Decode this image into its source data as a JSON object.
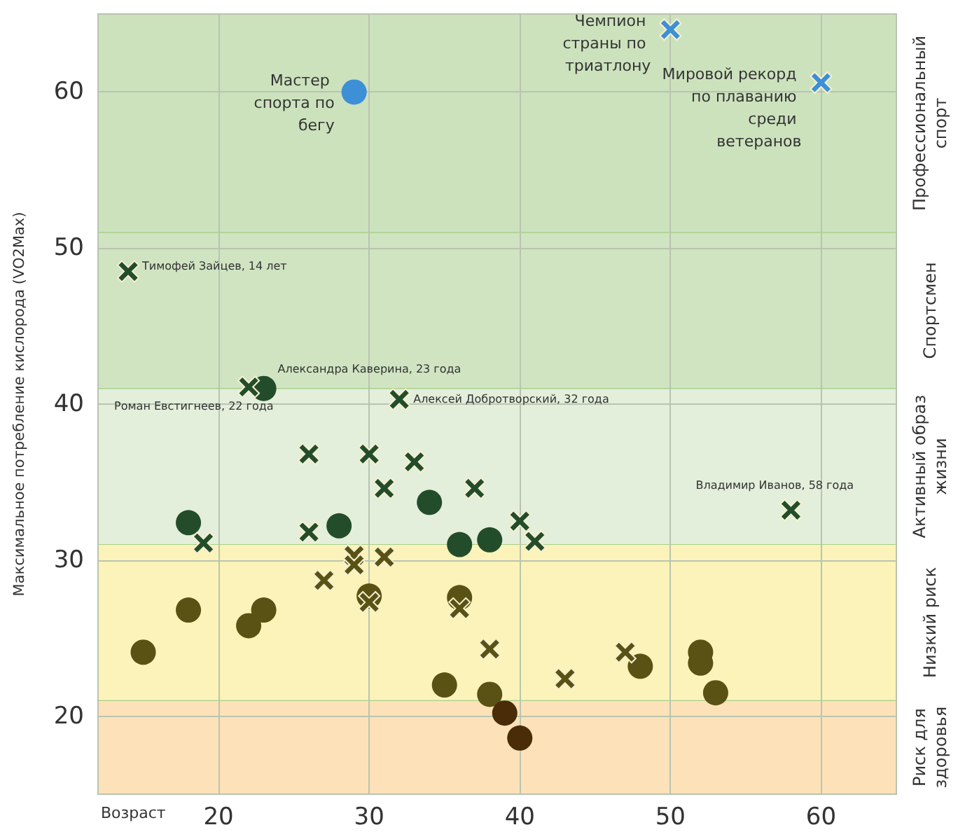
{
  "chart_data": {
    "type": "scatter",
    "xlabel": "Возраст",
    "ylabel": "Максимальное потребление кислорода (VO2Max)",
    "xlim": [
      12,
      65
    ],
    "ylim": [
      15,
      65
    ],
    "xticks": [
      20,
      30,
      40,
      50,
      60
    ],
    "yticks": [
      20,
      30,
      40,
      50,
      60
    ],
    "grid": true,
    "series": [
      {
        "color": "#3d8fd6",
        "marker": "circle",
        "x": [
          29
        ],
        "values": [
          60
        ]
      },
      {
        "color": "#3d8fd6",
        "marker": "cross",
        "x": [
          50,
          60
        ],
        "values": [
          64,
          60.6
        ]
      },
      {
        "color": "#234d2a",
        "marker": "cross",
        "x": [
          14,
          22,
          32,
          26,
          30,
          33,
          31,
          37,
          40,
          26,
          41,
          19,
          58
        ],
        "values": [
          48.5,
          41.1,
          40.3,
          36.8,
          36.8,
          36.3,
          34.6,
          34.6,
          32.5,
          31.8,
          31.2,
          31.1,
          33.2
        ]
      },
      {
        "color": "#234d2a",
        "marker": "circle",
        "x": [
          23,
          18,
          28,
          34,
          36,
          38
        ],
        "values": [
          41,
          32.4,
          32.2,
          33.7,
          31,
          31.3
        ]
      },
      {
        "color": "#5a5214",
        "marker": "cross",
        "x": [
          29,
          29,
          31,
          27,
          30,
          36,
          38,
          47,
          43
        ],
        "values": [
          30.3,
          29.7,
          30.2,
          28.7,
          27.3,
          26.9,
          24.3,
          24.1,
          22.4
        ]
      },
      {
        "color": "#5a5214",
        "marker": "circle",
        "x": [
          18,
          23,
          22,
          15,
          30,
          36,
          35,
          38,
          48,
          52,
          52,
          53
        ],
        "values": [
          26.8,
          26.8,
          25.8,
          24.1,
          27.7,
          27.6,
          22,
          21.4,
          23.2,
          24.1,
          23.4,
          21.5
        ]
      },
      {
        "color": "#4a2c08",
        "marker": "circle",
        "x": [
          39,
          40
        ],
        "values": [
          20.2,
          18.6
        ]
      }
    ],
    "bands": [
      {
        "axis": "y",
        "from": 15,
        "to": 21,
        "label": "Риск для здоровья",
        "color": "#fde2b9"
      },
      {
        "axis": "y",
        "from": 21,
        "to": 31,
        "label": "Низкий риск",
        "color": "#fbf3b9"
      },
      {
        "axis": "y",
        "from": 31,
        "to": 41,
        "label": "Активный образ жизни",
        "color": "#e3eedb"
      },
      {
        "axis": "y",
        "from": 41,
        "to": 51,
        "label": "Спортсмен",
        "color": "#d0e4c2"
      },
      {
        "axis": "y",
        "from": 51,
        "to": 65,
        "label": "Профессиональный спорт",
        "color": "#cce2bd"
      }
    ],
    "annotations": [
      {
        "text": "Мастер спорта по бегу",
        "x": 29,
        "y": 60
      },
      {
        "text": "Чемпион страны по триатлону",
        "x": 50,
        "y": 64
      },
      {
        "text": "Мировой рекорд по плаванию среди ветеранов",
        "x": 60,
        "y": 60.6
      },
      {
        "text": "Тимофей Зайцев, 14 лет",
        "x": 14,
        "y": 48.5
      },
      {
        "text": "Александра Каверина, 23 года",
        "x": 23,
        "y": 41
      },
      {
        "text": "Роман Евстигнеев, 22 года",
        "x": 22,
        "y": 41.1
      },
      {
        "text": "Алексей Добротворский, 32 года",
        "x": 32,
        "y": 40.3
      },
      {
        "text": "Владимир Иванов, 58 года",
        "x": 58,
        "y": 33.2
      }
    ]
  }
}
